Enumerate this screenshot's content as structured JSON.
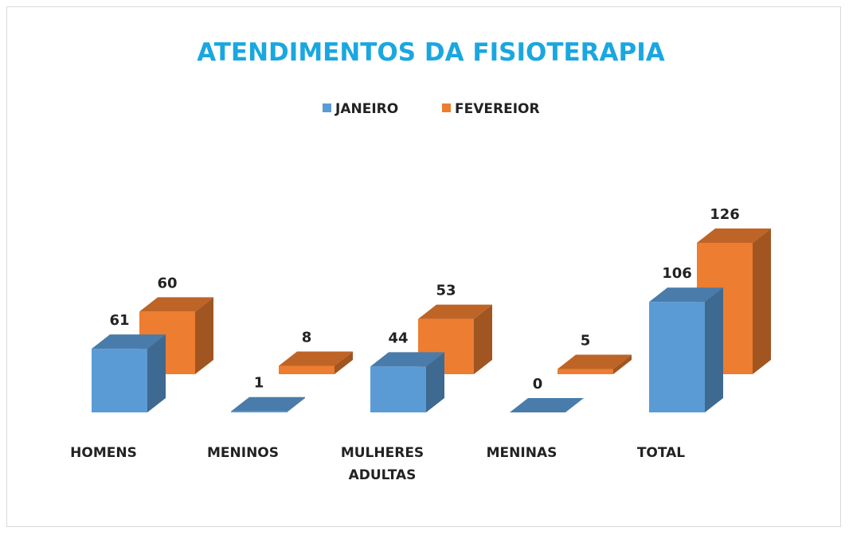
{
  "chart_data": {
    "type": "bar3d",
    "title": "ATENDIMENTOS DA FISIOTERAPIA",
    "categories": [
      "HOMENS",
      "MENINOS",
      "MULHERES ADULTAS",
      "MENINAS",
      "TOTAL"
    ],
    "series": [
      {
        "name": "JANEIRO",
        "color": "#5b9bd5",
        "values": [
          61,
          1,
          44,
          0,
          106
        ]
      },
      {
        "name": "FEVEREIOR",
        "color": "#ed7d31",
        "values": [
          60,
          8,
          53,
          5,
          126
        ]
      }
    ],
    "legend": "top"
  }
}
